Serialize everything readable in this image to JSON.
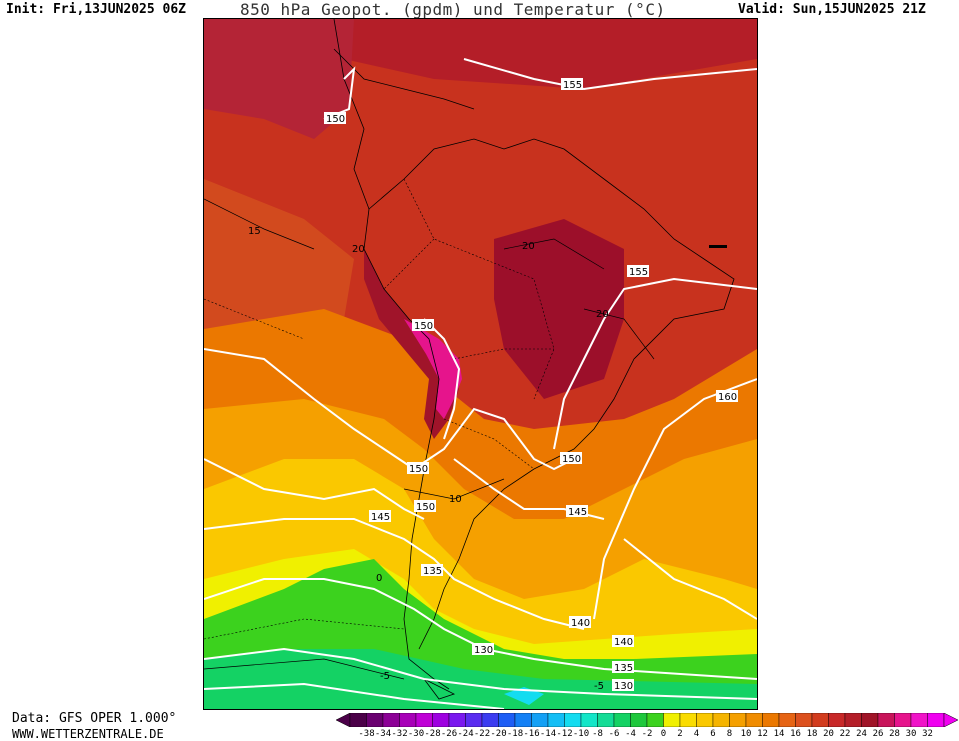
{
  "header": {
    "init": "Init: Fri,13JUN2025 06Z",
    "title": "850 hPa Geopot. (gpdm) und Temperatur (°C)",
    "valid": "Valid: Sun,15JUN2025 21Z"
  },
  "footer": {
    "data_source": "Data: GFS OPER 1.000°",
    "website": "WWW.WETTERZENTRALE.DE"
  },
  "map": {
    "region": "South America",
    "geopotential_labels": [
      "155",
      "150",
      "150",
      "155",
      "150",
      "160",
      "150",
      "150",
      "145",
      "145",
      "140",
      "140",
      "135",
      "140",
      "130",
      "135",
      "130"
    ],
    "temperature_labels": [
      "15",
      "20",
      "20",
      "20",
      "10",
      "0",
      "-5",
      "-5"
    ]
  },
  "legend": {
    "ticks": [
      "-38",
      "-34",
      "-32",
      "-30",
      "-28",
      "-26",
      "-24",
      "-22",
      "-20",
      "-18",
      "-16",
      "-14",
      "-12",
      "-10",
      "-8",
      "-6",
      "-4",
      "-2",
      "0",
      "2",
      "4",
      "6",
      "8",
      "10",
      "12",
      "14",
      "16",
      "18",
      "20",
      "22",
      "24",
      "26",
      "28",
      "30",
      "32"
    ],
    "colors": [
      "#4b0048",
      "#6a0070",
      "#8c0096",
      "#a800b8",
      "#bf00d6",
      "#9e00e0",
      "#7a18ee",
      "#5a2cf0",
      "#3c3cf0",
      "#1e5ef5",
      "#1480f5",
      "#14a0f5",
      "#14bef5",
      "#14dcf0",
      "#14e6c8",
      "#14dc96",
      "#14d264",
      "#1ec83c",
      "#3cd21e",
      "#f0f000",
      "#fadc00",
      "#fac800",
      "#f5b400",
      "#f5a000",
      "#f08c00",
      "#eb7800",
      "#e66414",
      "#dc501e",
      "#d23c1e",
      "#c82828",
      "#b41e28",
      "#a01428",
      "#c8145a",
      "#e6148c",
      "#f014c8",
      "#f000f0"
    ]
  }
}
